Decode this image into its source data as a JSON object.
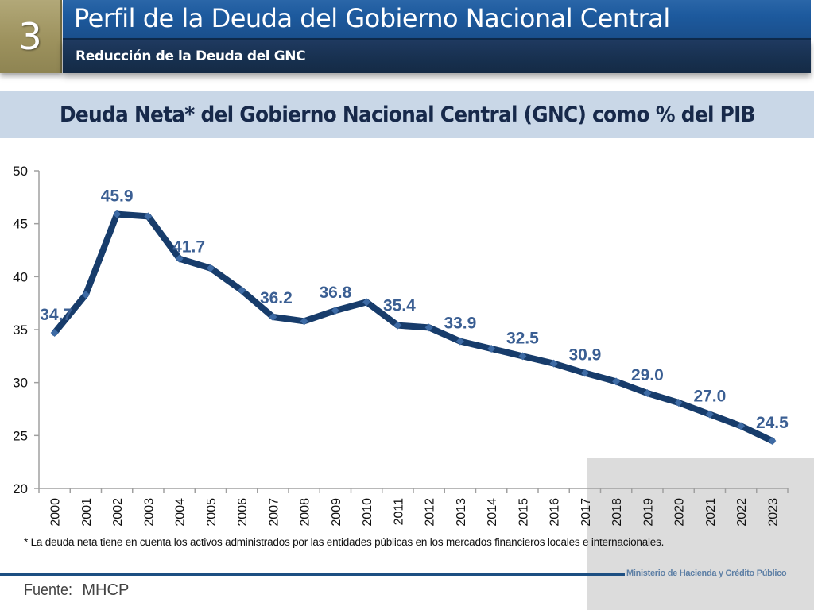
{
  "header": {
    "section_number": "3",
    "title": "Perfil de la Deuda del Gobierno Nacional Central",
    "subtitle": "Reducción de la Deuda del GNC"
  },
  "chart_heading": "Deuda Neta* del Gobierno Nacional Central (GNC) como % del PIB",
  "chart_data": {
    "type": "line",
    "title": "Deuda Neta* del Gobierno Nacional Central (GNC) como % del PIB",
    "xlabel": "",
    "ylabel": "",
    "ylim": [
      20,
      50
    ],
    "yticks": [
      20,
      25,
      30,
      35,
      40,
      45,
      50
    ],
    "grid": false,
    "legend": "none",
    "categories": [
      "2000",
      "2001",
      "2002",
      "2003",
      "2004",
      "2005",
      "2006",
      "2007",
      "2008",
      "2009",
      "2010",
      "2011",
      "2012",
      "2013",
      "2014",
      "2015",
      "2016",
      "2017",
      "2018",
      "2019",
      "2020",
      "2021",
      "2022",
      "2023"
    ],
    "series": [
      {
        "name": "Deuda Neta GNC (% PIB)",
        "color": "#173c6b",
        "marker_color": "#3e6ba5",
        "values": [
          34.7,
          38.3,
          45.9,
          45.7,
          41.7,
          40.8,
          38.7,
          36.2,
          35.8,
          36.8,
          37.6,
          35.4,
          35.2,
          33.9,
          33.2,
          32.5,
          31.8,
          30.9,
          30.1,
          29.0,
          28.1,
          27.0,
          25.9,
          24.5
        ]
      }
    ],
    "data_labels": [
      {
        "category": "2000",
        "text": "34.7"
      },
      {
        "category": "2002",
        "text": "45.9"
      },
      {
        "category": "2004",
        "text": "41.7"
      },
      {
        "category": "2007",
        "text": "36.2"
      },
      {
        "category": "2009",
        "text": "36.8"
      },
      {
        "category": "2011",
        "text": "35.4"
      },
      {
        "category": "2013",
        "text": "33.9"
      },
      {
        "category": "2015",
        "text": "32.5"
      },
      {
        "category": "2017",
        "text": "30.9"
      },
      {
        "category": "2019",
        "text": "29.0"
      },
      {
        "category": "2021",
        "text": "27.0"
      },
      {
        "category": "2023",
        "text": "24.5"
      }
    ],
    "label_color": "#3b5f93"
  },
  "footnote": "* La deuda neta tiene en cuenta los activos administrados por las entidades públicas en los mercados financieros locales e internacionales.",
  "footer": {
    "ministry": "Ministerio de Hacienda y Crédito Público",
    "source_label": "Fuente:",
    "source_value": "MHCP"
  }
}
